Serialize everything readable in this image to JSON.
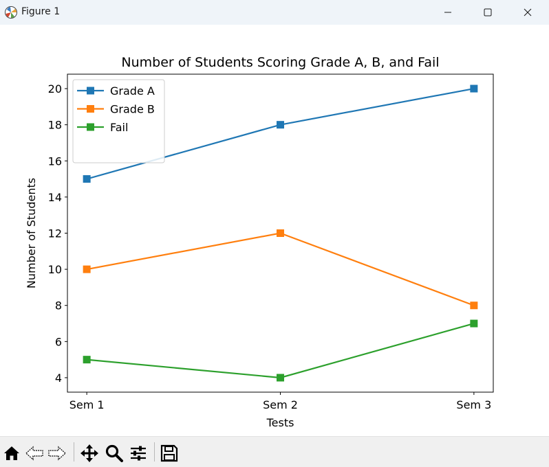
{
  "window": {
    "title": "Figure 1",
    "controls": [
      "minimize",
      "maximize",
      "close"
    ]
  },
  "toolbar": {
    "tools": [
      "home-icon",
      "back-arrow-icon",
      "forward-arrow-icon",
      "pan-icon",
      "zoom-icon",
      "configure-subplots-icon",
      "save-icon"
    ]
  },
  "chart_data": {
    "type": "line",
    "title": "Number of Students Scoring Grade A, B, and Fail",
    "xlabel": "Tests",
    "ylabel": "Number of Students",
    "categories": [
      "Sem 1",
      "Sem 2",
      "Sem 3"
    ],
    "series": [
      {
        "name": "Grade A",
        "values": [
          15,
          18,
          20
        ],
        "color": "#1f77b4",
        "marker": "square"
      },
      {
        "name": "Grade B",
        "values": [
          10,
          12,
          8
        ],
        "color": "#ff7f0e",
        "marker": "square"
      },
      {
        "name": "Fail",
        "values": [
          5,
          4,
          7
        ],
        "color": "#2ca02c",
        "marker": "square"
      }
    ],
    "ylim": [
      3.2,
      20.8
    ],
    "yticks": [
      4,
      6,
      8,
      10,
      12,
      14,
      16,
      18,
      20
    ],
    "grid": false,
    "legend": "upper-left"
  }
}
